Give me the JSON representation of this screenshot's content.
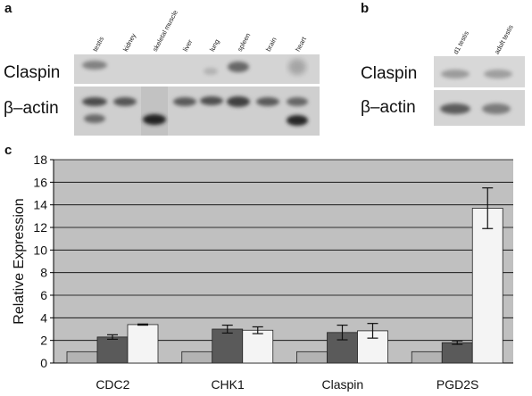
{
  "panels": {
    "a": "a",
    "b": "b",
    "c": "c"
  },
  "panel_a": {
    "lanes": [
      "testis",
      "kidney",
      "skeletal muscle",
      "liver",
      "lung",
      "spleen",
      "brain",
      "heart"
    ],
    "rows": [
      "Claspin",
      "β–actin"
    ]
  },
  "panel_b": {
    "lanes": [
      "d1 testis",
      "adult testis"
    ],
    "rows": [
      "Claspin",
      "β–actin"
    ]
  },
  "chart_data": {
    "type": "bar",
    "categories": [
      "CDC2",
      "CHK1",
      "Claspin",
      "PGD2S"
    ],
    "ylabel": "Relative Expression",
    "xlabel": "",
    "ylim": [
      0,
      18
    ],
    "yticks": [
      0,
      2,
      4,
      6,
      8,
      10,
      12,
      14,
      16,
      18
    ],
    "grid": true,
    "legend": "none",
    "series": [
      {
        "values": [
          1,
          1,
          1,
          1
        ],
        "errors": [
          0,
          0,
          0,
          0
        ],
        "color": "#b3b3b3"
      },
      {
        "values": [
          2.3,
          3.0,
          2.7,
          1.8
        ],
        "errors": [
          0.2,
          0.35,
          0.65,
          0.15
        ],
        "color": "#5a5a5a"
      },
      {
        "values": [
          3.4,
          2.9,
          2.85,
          13.7
        ],
        "errors": [
          0.05,
          0.3,
          0.65,
          1.8
        ],
        "color": "#f4f4f4"
      }
    ]
  }
}
